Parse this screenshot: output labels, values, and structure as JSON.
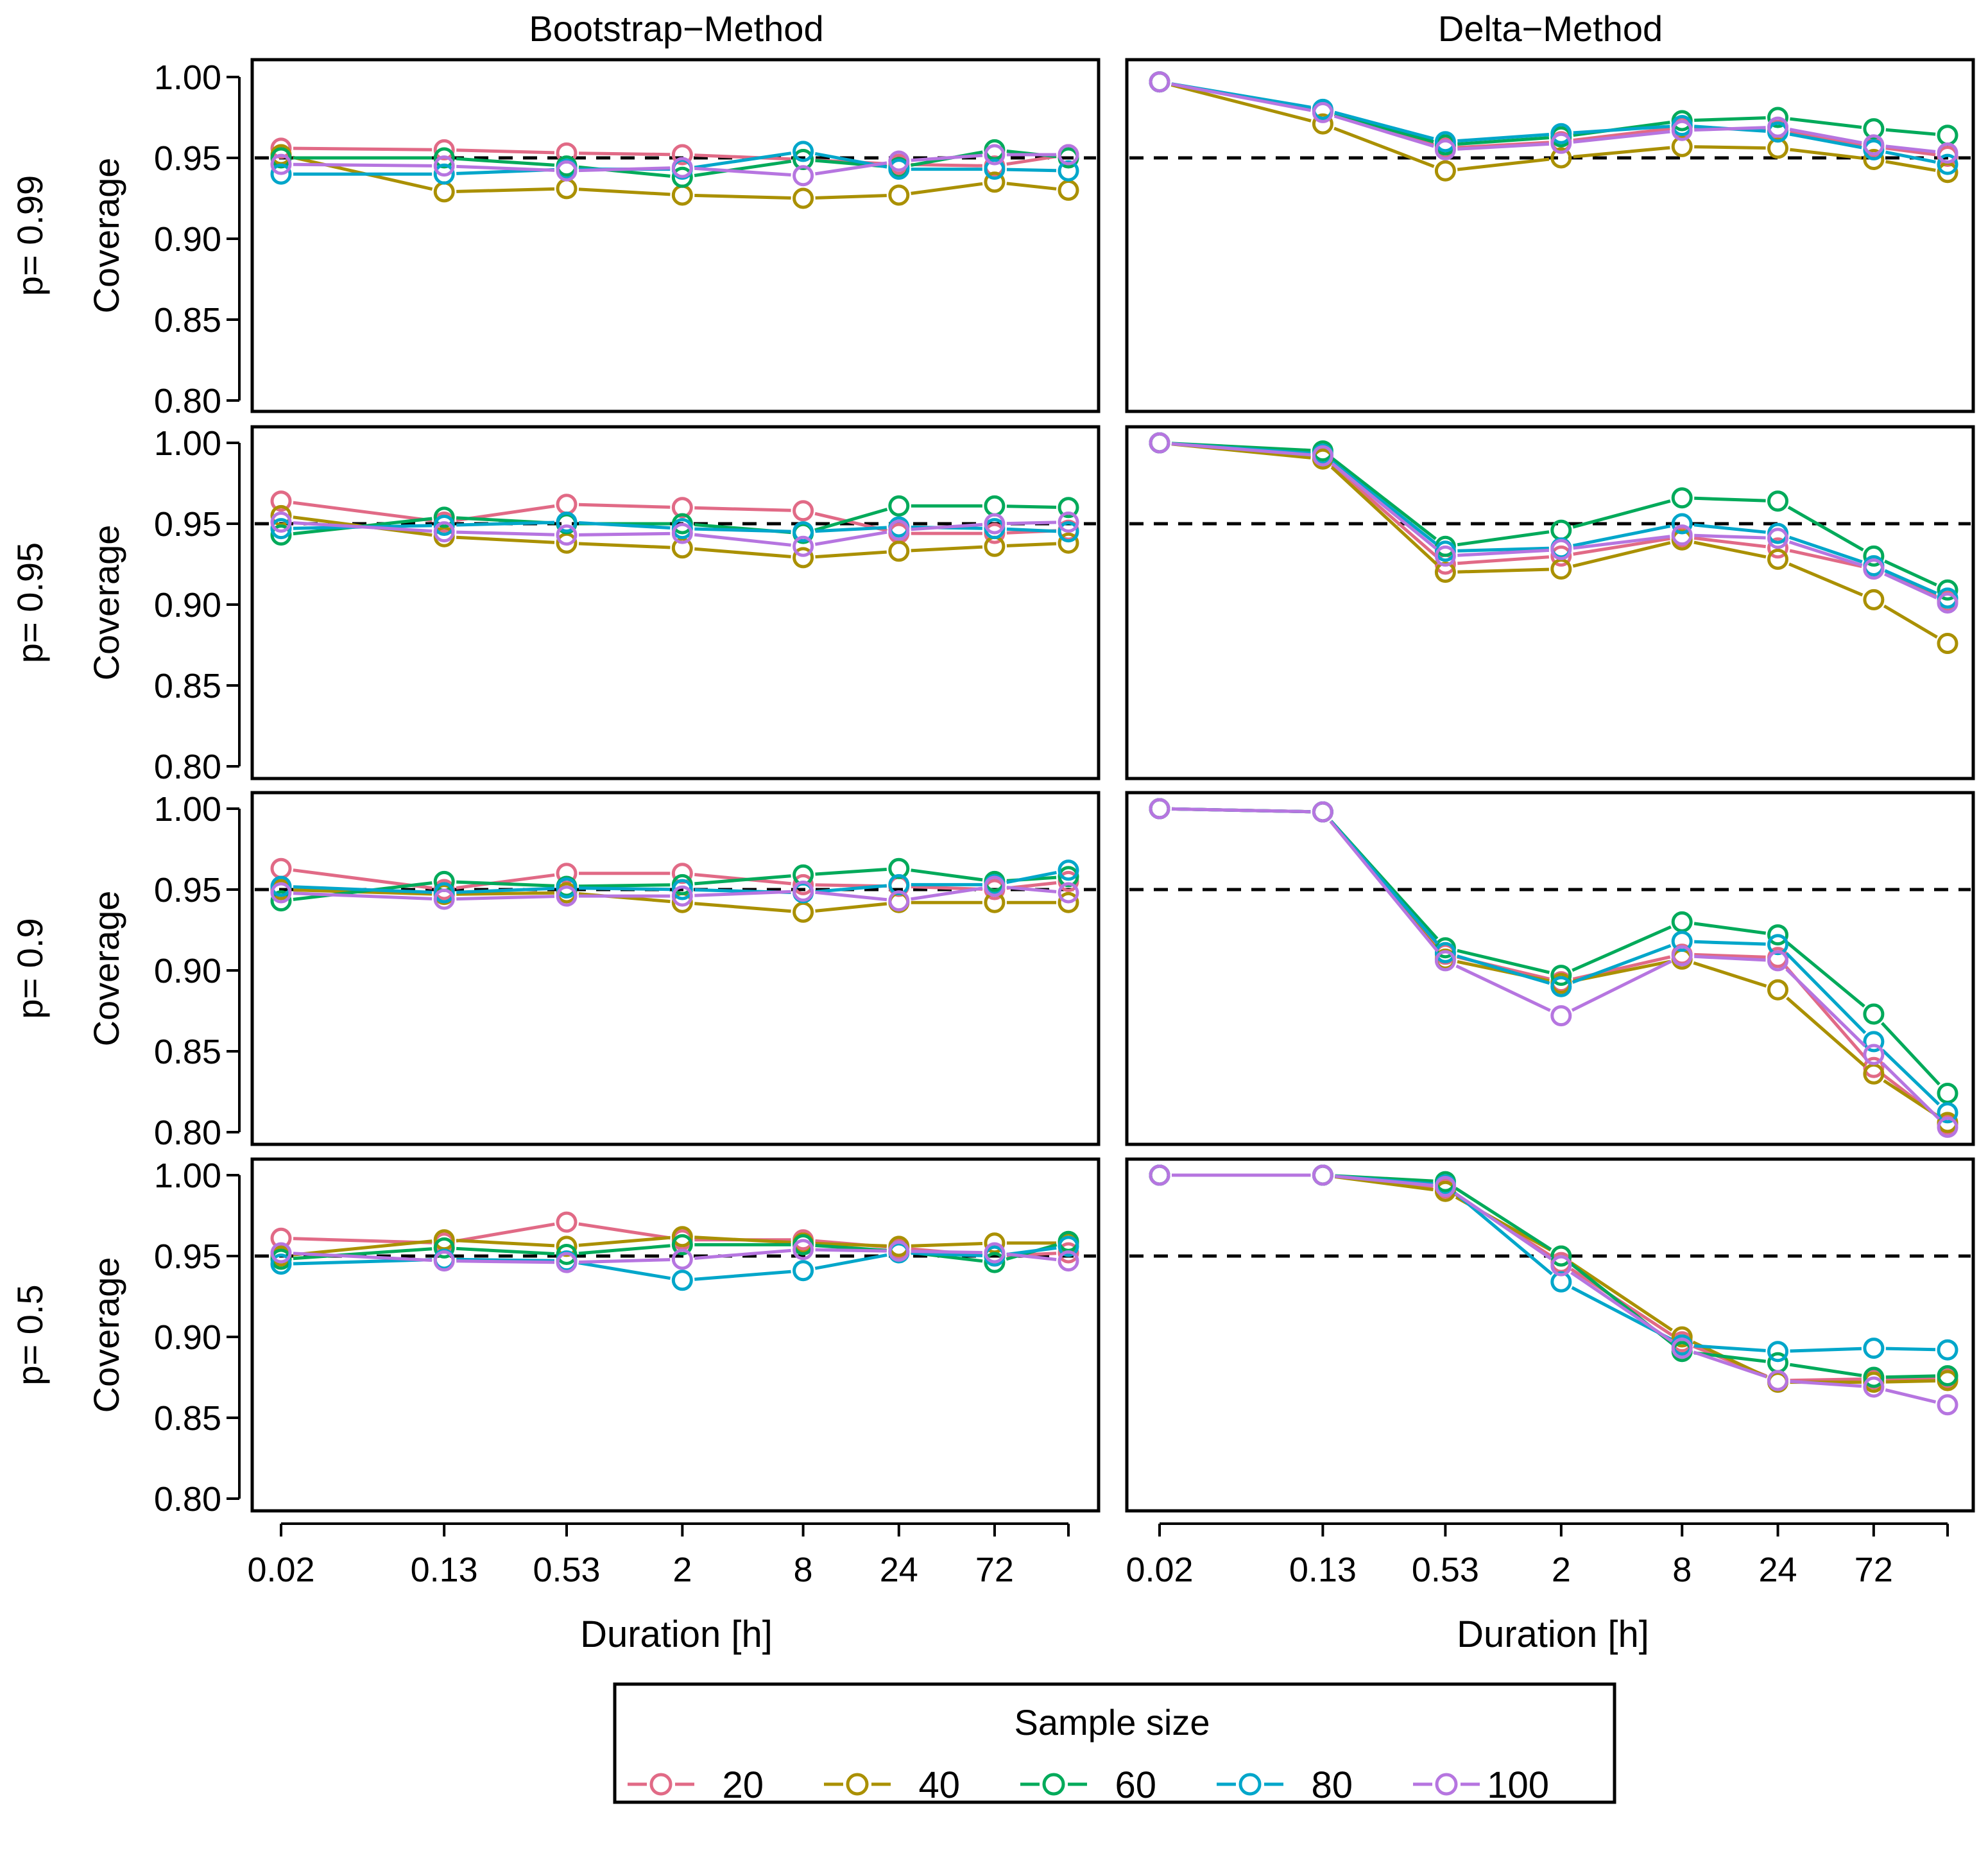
{
  "chart_data": {
    "type": "line",
    "panel_columns": [
      "Bootstrap−Method",
      "Delta−Method"
    ],
    "panel_rows": [
      "p= 0.99",
      "p= 0.95",
      "p= 0.9",
      "p= 0.5"
    ],
    "ylabel": "Coverage",
    "xlabel": "Duration [h]",
    "x_ticks": [
      "0.02",
      "0.13",
      "0.53",
      "2",
      "8",
      "24",
      "72"
    ],
    "x_positions": [
      0.02,
      0.13,
      0.53,
      2,
      8,
      24,
      72,
      168
    ],
    "x_scale": "log",
    "ylim": [
      0.795,
      1.005
    ],
    "y_ticks": [
      "0.80",
      "0.85",
      "0.90",
      "0.95",
      "1.00"
    ],
    "reference_line": 0.95,
    "legend_title": "Sample size",
    "series_names": [
      "20",
      "40",
      "60",
      "80",
      "100"
    ],
    "series_colors": [
      "#E16A86",
      "#AA9000",
      "#00AA5A",
      "#00A6CA",
      "#B675E0"
    ],
    "panels": [
      {
        "method": "Bootstrap−Method",
        "p": "0.99",
        "series": [
          {
            "name": "20",
            "values": [
              0.956,
              0.955,
              0.953,
              0.952,
              0.949,
              0.946,
              0.945,
              0.952
            ]
          },
          {
            "name": "40",
            "values": [
              0.952,
              0.929,
              0.931,
              0.927,
              0.925,
              0.927,
              0.935,
              0.93
            ]
          },
          {
            "name": "60",
            "values": [
              0.95,
              0.95,
              0.945,
              0.938,
              0.949,
              0.944,
              0.955,
              0.95
            ]
          },
          {
            "name": "80",
            "values": [
              0.94,
              0.94,
              0.943,
              0.943,
              0.954,
              0.943,
              0.943,
              0.942
            ]
          },
          {
            "name": "100",
            "values": [
              0.946,
              0.945,
              0.942,
              0.944,
              0.939,
              0.948,
              0.952,
              0.952
            ]
          }
        ]
      },
      {
        "method": "Delta−Method",
        "p": "0.99",
        "series": [
          {
            "name": "20",
            "values": [
              0.997,
              0.979,
              0.956,
              0.96,
              0.969,
              0.967,
              0.957,
              0.951
            ]
          },
          {
            "name": "40",
            "values": [
              0.997,
              0.971,
              0.942,
              0.95,
              0.957,
              0.956,
              0.949,
              0.941
            ]
          },
          {
            "name": "60",
            "values": [
              0.997,
              0.979,
              0.958,
              0.963,
              0.973,
              0.975,
              0.968,
              0.964
            ]
          },
          {
            "name": "80",
            "values": [
              0.997,
              0.98,
              0.96,
              0.965,
              0.97,
              0.966,
              0.955,
              0.946
            ]
          },
          {
            "name": "100",
            "values": [
              0.997,
              0.978,
              0.955,
              0.959,
              0.967,
              0.969,
              0.958,
              0.953
            ]
          }
        ]
      },
      {
        "method": "Bootstrap−Method",
        "p": "0.95",
        "series": [
          {
            "name": "20",
            "values": [
              0.964,
              0.951,
              0.962,
              0.96,
              0.958,
              0.944,
              0.944,
              0.946
            ]
          },
          {
            "name": "40",
            "values": [
              0.955,
              0.942,
              0.938,
              0.935,
              0.929,
              0.933,
              0.936,
              0.938
            ]
          },
          {
            "name": "60",
            "values": [
              0.943,
              0.954,
              0.95,
              0.95,
              0.944,
              0.961,
              0.961,
              0.96
            ]
          },
          {
            "name": "80",
            "values": [
              0.947,
              0.949,
              0.951,
              0.947,
              0.945,
              0.948,
              0.947,
              0.945
            ]
          },
          {
            "name": "100",
            "values": [
              0.951,
              0.945,
              0.943,
              0.944,
              0.936,
              0.946,
              0.95,
              0.951
            ]
          }
        ]
      },
      {
        "method": "Delta−Method",
        "p": "0.95",
        "series": [
          {
            "name": "20",
            "values": [
              1.0,
              0.991,
              0.925,
              0.93,
              0.942,
              0.935,
              0.922,
              0.902
            ]
          },
          {
            "name": "40",
            "values": [
              1.0,
              0.99,
              0.92,
              0.922,
              0.94,
              0.928,
              0.903,
              0.876
            ]
          },
          {
            "name": "60",
            "values": [
              1.0,
              0.995,
              0.936,
              0.946,
              0.966,
              0.964,
              0.93,
              0.909
            ]
          },
          {
            "name": "80",
            "values": [
              1.0,
              0.993,
              0.933,
              0.935,
              0.95,
              0.944,
              0.924,
              0.904
            ]
          },
          {
            "name": "100",
            "values": [
              1.0,
              0.992,
              0.93,
              0.934,
              0.943,
              0.941,
              0.922,
              0.901
            ]
          }
        ]
      },
      {
        "method": "Bootstrap−Method",
        "p": "0.9",
        "series": [
          {
            "name": "20",
            "values": [
              0.963,
              0.95,
              0.96,
              0.96,
              0.953,
              0.952,
              0.95,
              0.955
            ]
          },
          {
            "name": "40",
            "values": [
              0.95,
              0.947,
              0.948,
              0.942,
              0.936,
              0.942,
              0.942,
              0.942
            ]
          },
          {
            "name": "60",
            "values": [
              0.943,
              0.955,
              0.952,
              0.953,
              0.959,
              0.963,
              0.955,
              0.958
            ]
          },
          {
            "name": "80",
            "values": [
              0.952,
              0.948,
              0.951,
              0.95,
              0.948,
              0.953,
              0.953,
              0.962
            ]
          },
          {
            "name": "100",
            "values": [
              0.948,
              0.944,
              0.946,
              0.946,
              0.949,
              0.943,
              0.952,
              0.948
            ]
          }
        ]
      },
      {
        "method": "Delta−Method",
        "p": "0.9",
        "series": [
          {
            "name": "20",
            "values": [
              1.0,
              0.998,
              0.91,
              0.893,
              0.91,
              0.908,
              0.84,
              0.805
            ]
          },
          {
            "name": "40",
            "values": [
              1.0,
              0.998,
              0.907,
              0.892,
              0.907,
              0.888,
              0.836,
              0.806
            ]
          },
          {
            "name": "60",
            "values": [
              1.0,
              0.998,
              0.914,
              0.897,
              0.93,
              0.922,
              0.873,
              0.824
            ]
          },
          {
            "name": "80",
            "values": [
              1.0,
              0.998,
              0.911,
              0.89,
              0.918,
              0.916,
              0.856,
              0.812
            ]
          },
          {
            "name": "100",
            "values": [
              1.0,
              0.998,
              0.906,
              0.872,
              0.909,
              0.906,
              0.848,
              0.803
            ]
          }
        ]
      },
      {
        "method": "Bootstrap−Method",
        "p": "0.5",
        "series": [
          {
            "name": "20",
            "values": [
              0.961,
              0.958,
              0.971,
              0.96,
              0.96,
              0.955,
              0.95,
              0.952
            ]
          },
          {
            "name": "40",
            "values": [
              0.95,
              0.96,
              0.956,
              0.962,
              0.958,
              0.956,
              0.958,
              0.958
            ]
          },
          {
            "name": "60",
            "values": [
              0.948,
              0.955,
              0.951,
              0.957,
              0.957,
              0.953,
              0.946,
              0.959
            ]
          },
          {
            "name": "80",
            "values": [
              0.945,
              0.948,
              0.947,
              0.935,
              0.941,
              0.952,
              0.95,
              0.956
            ]
          },
          {
            "name": "100",
            "values": [
              0.952,
              0.947,
              0.946,
              0.948,
              0.954,
              0.953,
              0.952,
              0.947
            ]
          }
        ]
      },
      {
        "method": "Delta−Method",
        "p": "0.5",
        "series": [
          {
            "name": "20",
            "values": [
              1.0,
              1.0,
              0.992,
              0.946,
              0.897,
              0.873,
              0.874,
              0.874
            ]
          },
          {
            "name": "40",
            "values": [
              1.0,
              1.0,
              0.99,
              0.95,
              0.9,
              0.872,
              0.872,
              0.873
            ]
          },
          {
            "name": "60",
            "values": [
              1.0,
              1.0,
              0.996,
              0.95,
              0.891,
              0.884,
              0.875,
              0.876
            ]
          },
          {
            "name": "80",
            "values": [
              1.0,
              1.0,
              0.994,
              0.934,
              0.895,
              0.891,
              0.893,
              0.892
            ]
          },
          {
            "name": "100",
            "values": [
              1.0,
              1.0,
              0.993,
              0.944,
              0.893,
              0.873,
              0.869,
              0.858
            ]
          }
        ]
      }
    ]
  }
}
